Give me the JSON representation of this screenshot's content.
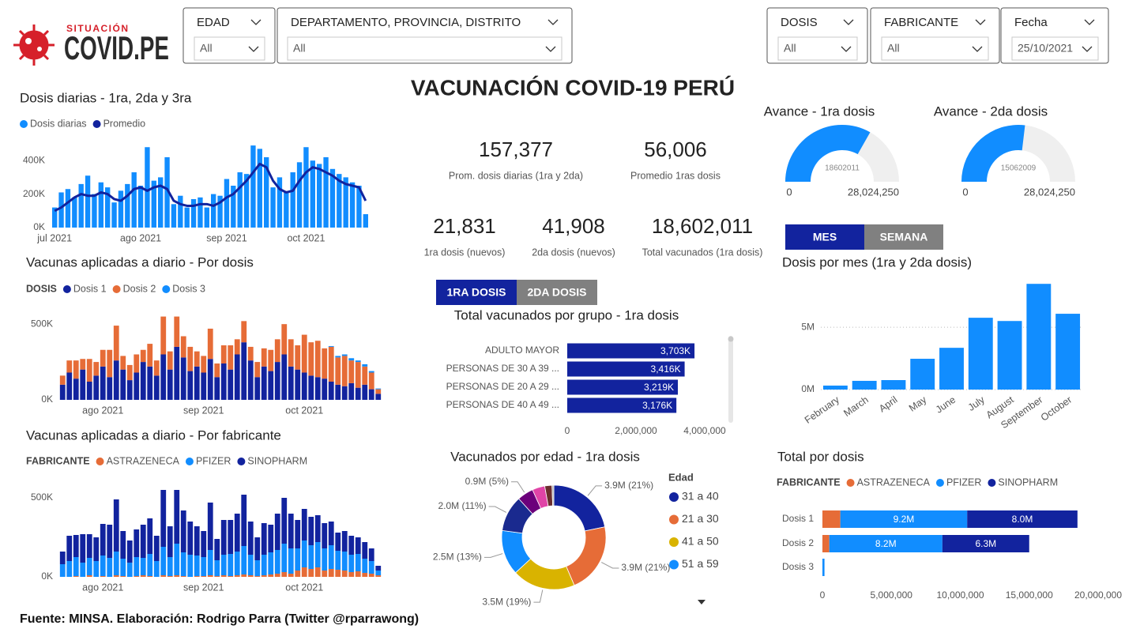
{
  "header": {
    "logo_small": "SITUACIÓN",
    "logo": "COVID.PE",
    "title": "VACUNACIÓN COVID-19 PERÚ"
  },
  "filters": [
    {
      "label": "EDAD",
      "value": "All"
    },
    {
      "label": "DEPARTAMENTO, PROVINCIA, DISTRITO",
      "value": "All"
    },
    {
      "label": "DOSIS",
      "value": "All"
    },
    {
      "label": "FABRICANTE",
      "value": "All"
    },
    {
      "label": "Fecha",
      "value": "25/10/2021"
    }
  ],
  "kpis": [
    {
      "value": "157,377",
      "label": "Prom. dosis diarias (1ra y 2da)"
    },
    {
      "value": "56,006",
      "label": "Promedio 1ras dosis"
    },
    {
      "value": "21,831",
      "label": "1ra dosis (nuevos)"
    },
    {
      "value": "41,908",
      "label": "2da dosis (nuevos)"
    },
    {
      "value": "18,602,011",
      "label": "Total vacunados (1ra dosis)"
    }
  ],
  "toggles": {
    "dose": [
      "1RA DOSIS",
      "2DA DOSIS"
    ],
    "period": [
      "MES",
      "SEMANA"
    ]
  },
  "footer": "Fuente: MINSA. Elaboración: Rodrigo Parra (Twitter @rparrawong)",
  "chart_data": [
    {
      "type": "combo",
      "title": "Dosis diarias - 1ra, 2da y 3ra",
      "categories": [
        "jul 2021",
        null,
        null,
        null,
        null,
        null,
        null,
        null,
        null,
        null,
        null,
        null,
        null,
        "ago 2021",
        null,
        null,
        null,
        null,
        null,
        null,
        null,
        null,
        null,
        null,
        null,
        null,
        "sep 2021",
        null,
        null,
        null,
        null,
        null,
        null,
        null,
        null,
        null,
        null,
        null,
        "oct 2021",
        null,
        null,
        null,
        null,
        null,
        null,
        null,
        null,
        null
      ],
      "series": [
        {
          "name": "Dosis diarias",
          "color": "#118dff",
          "mark": "bar",
          "values": [
            120000,
            210000,
            230000,
            180000,
            260000,
            310000,
            200000,
            270000,
            240000,
            150000,
            220000,
            260000,
            330000,
            250000,
            480000,
            280000,
            300000,
            420000,
            140000,
            190000,
            120000,
            170000,
            180000,
            120000,
            200000,
            190000,
            290000,
            250000,
            330000,
            320000,
            490000,
            470000,
            420000,
            240000,
            300000,
            210000,
            330000,
            390000,
            480000,
            400000,
            380000,
            420000,
            350000,
            320000,
            300000,
            270000,
            250000,
            80000
          ]
        },
        {
          "name": "Promedio",
          "color": "#12239e",
          "mark": "line",
          "values": [
            100000,
            120000,
            150000,
            180000,
            200000,
            190000,
            190000,
            210000,
            200000,
            170000,
            160000,
            190000,
            230000,
            240000,
            220000,
            240000,
            250000,
            230000,
            160000,
            140000,
            130000,
            130000,
            140000,
            140000,
            130000,
            150000,
            180000,
            200000,
            240000,
            280000,
            330000,
            380000,
            360000,
            280000,
            230000,
            210000,
            220000,
            280000,
            330000,
            360000,
            350000,
            330000,
            310000,
            280000,
            260000,
            250000,
            240000,
            160000
          ]
        }
      ],
      "ylim": [
        0,
        500000
      ],
      "yticks": [
        {
          "value": 0,
          "label": "0K"
        },
        {
          "value": 200000,
          "label": "200K"
        },
        {
          "value": 400000,
          "label": "400K"
        }
      ],
      "grid": false
    },
    {
      "type": "stacked_bar",
      "title": "Vacunas aplicadas a diario - Por dosis",
      "legend_title": "DOSIS",
      "categories": [
        null,
        null,
        null,
        null,
        null,
        null,
        "ago 2021",
        null,
        null,
        null,
        null,
        null,
        null,
        null,
        null,
        null,
        null,
        null,
        null,
        null,
        null,
        "sep 2021",
        null,
        null,
        null,
        null,
        null,
        null,
        null,
        null,
        null,
        null,
        null,
        null,
        null,
        null,
        "oct 2021",
        null,
        null,
        null,
        null,
        null,
        null,
        null,
        null,
        null,
        null,
        null
      ],
      "series": [
        {
          "name": "Dosis 1",
          "color": "#12239e",
          "values": [
            100000,
            180000,
            140000,
            200000,
            120000,
            160000,
            220000,
            150000,
            260000,
            200000,
            130000,
            180000,
            250000,
            220000,
            160000,
            300000,
            200000,
            350000,
            280000,
            190000,
            220000,
            180000,
            270000,
            150000,
            240000,
            200000,
            300000,
            380000,
            260000,
            150000,
            220000,
            190000,
            250000,
            300000,
            220000,
            200000,
            180000,
            160000,
            150000,
            140000,
            120000,
            100000,
            90000,
            110000,
            80000,
            100000,
            70000,
            40000
          ]
        },
        {
          "name": "Dosis 2",
          "color": "#e66c37",
          "values": [
            60000,
            80000,
            120000,
            70000,
            150000,
            90000,
            110000,
            180000,
            230000,
            90000,
            100000,
            120000,
            80000,
            150000,
            100000,
            250000,
            120000,
            200000,
            140000,
            160000,
            100000,
            110000,
            200000,
            90000,
            120000,
            160000,
            100000,
            140000,
            90000,
            100000,
            120000,
            140000,
            150000,
            200000,
            180000,
            160000,
            250000,
            220000,
            240000,
            200000,
            230000,
            180000,
            200000,
            150000,
            170000,
            120000,
            110000,
            30000
          ]
        },
        {
          "name": "Dosis 3",
          "color": "#118dff",
          "values": [
            0,
            0,
            0,
            0,
            0,
            0,
            0,
            0,
            0,
            0,
            0,
            0,
            0,
            0,
            0,
            0,
            0,
            0,
            0,
            0,
            0,
            0,
            0,
            0,
            0,
            0,
            0,
            0,
            0,
            0,
            0,
            0,
            0,
            0,
            0,
            0,
            0,
            0,
            0,
            0,
            5000,
            10000,
            10000,
            15000,
            10000,
            15000,
            10000,
            5000
          ]
        }
      ],
      "ylim": [
        0,
        600000
      ],
      "yticks": [
        {
          "value": 0,
          "label": "0K"
        },
        {
          "value": 500000,
          "label": "500K"
        }
      ],
      "grid": false
    },
    {
      "type": "stacked_bar",
      "title": "Vacunas aplicadas a diario - Por fabricante",
      "legend_title": "FABRICANTE",
      "categories": [
        null,
        null,
        null,
        null,
        null,
        null,
        "ago 2021",
        null,
        null,
        null,
        null,
        null,
        null,
        null,
        null,
        null,
        null,
        null,
        null,
        null,
        null,
        "sep 2021",
        null,
        null,
        null,
        null,
        null,
        null,
        null,
        null,
        null,
        null,
        null,
        null,
        null,
        null,
        "oct 2021",
        null,
        null,
        null,
        null,
        null,
        null,
        null,
        null,
        null,
        null,
        null
      ],
      "series": [
        {
          "name": "ASTRAZENECA",
          "color": "#e66c37",
          "values": [
            0,
            0,
            5000,
            0,
            10000,
            0,
            5000,
            0,
            10000,
            5000,
            0,
            5000,
            10000,
            5000,
            0,
            10000,
            5000,
            10000,
            5000,
            0,
            5000,
            5000,
            10000,
            5000,
            10000,
            5000,
            10000,
            15000,
            10000,
            5000,
            10000,
            15000,
            20000,
            30000,
            20000,
            40000,
            60000,
            50000,
            60000,
            40000,
            50000,
            45000,
            40000,
            30000,
            35000,
            25000,
            20000,
            10000
          ]
        },
        {
          "name": "PFIZER",
          "color": "#118dff",
          "values": [
            80000,
            100000,
            120000,
            90000,
            110000,
            100000,
            130000,
            120000,
            150000,
            110000,
            90000,
            120000,
            110000,
            140000,
            100000,
            180000,
            120000,
            200000,
            150000,
            140000,
            130000,
            120000,
            160000,
            100000,
            130000,
            140000,
            150000,
            180000,
            130000,
            100000,
            130000,
            140000,
            150000,
            180000,
            160000,
            140000,
            170000,
            150000,
            160000,
            140000,
            150000,
            120000,
            120000,
            110000,
            110000,
            90000,
            80000,
            30000
          ]
        },
        {
          "name": "SINOPHARM",
          "color": "#12239e",
          "values": [
            80000,
            160000,
            140000,
            180000,
            150000,
            150000,
            200000,
            210000,
            330000,
            175000,
            140000,
            175000,
            210000,
            225000,
            160000,
            360000,
            195000,
            340000,
            265000,
            210000,
            185000,
            165000,
            300000,
            135000,
            220000,
            215000,
            240000,
            325000,
            210000,
            145000,
            200000,
            175000,
            230000,
            290000,
            220000,
            180000,
            200000,
            180000,
            170000,
            160000,
            150000,
            115000,
            130000,
            120000,
            105000,
            105000,
            80000,
            30000
          ]
        }
      ],
      "ylim": [
        0,
        600000
      ],
      "yticks": [
        {
          "value": 0,
          "label": "0K"
        },
        {
          "value": 500000,
          "label": "500K"
        }
      ],
      "grid": false
    },
    {
      "type": "gauge",
      "title": "Avance - 1ra dosis",
      "value": 18602011,
      "color": "#118dff",
      "ylim": [
        0,
        28024250
      ],
      "yticks": [
        0,
        {
          "value": 28024250,
          "label": "28,024,250"
        }
      ]
    },
    {
      "type": "gauge",
      "title": "Avance - 2da dosis",
      "value": 15062009,
      "color": "#118dff",
      "ylim": [
        0,
        28024250
      ],
      "yticks": [
        0,
        {
          "value": 28024250,
          "label": "28,024,250"
        }
      ]
    },
    {
      "type": "bar",
      "title": "Dosis por mes (1ra y 2da dosis)",
      "categories": [
        "February",
        "March",
        "April",
        "May",
        "June",
        "July",
        "August",
        "September",
        "October"
      ],
      "values": [
        320000,
        700000,
        760000,
        2470000,
        3350000,
        5760000,
        5500000,
        8480000,
        6080000
      ],
      "color": "#118dff",
      "ylim": [
        0,
        9000000
      ],
      "yticks": [
        {
          "value": 0,
          "label": "0M"
        },
        {
          "value": 5000000,
          "label": "5M"
        }
      ],
      "grid": true
    },
    {
      "type": "hbar",
      "title": "Total vacunados por grupo - 1ra dosis",
      "categories": [
        "ADULTO MAYOR",
        "PERSONAS DE 30 A 39 ...",
        "PERSONAS DE 20 A 29 ...",
        "PERSONAS DE 40 A 49 ..."
      ],
      "values": [
        3703000,
        3416000,
        3219000,
        3176000
      ],
      "value_labels": [
        "3,703K",
        "3,416K",
        "3,219K",
        "3,176K"
      ],
      "color": "#12239e",
      "xlim": [
        0,
        4000000
      ],
      "xticks": [
        0,
        {
          "value": 2000000,
          "label": "2,000,000"
        },
        {
          "value": 4000000,
          "label": "4,000,000"
        }
      ]
    },
    {
      "type": "donut",
      "title": "Vacunados por edad - 1ra dosis",
      "legend_title": "Edad",
      "categories": [
        "31 a 40",
        "21 a 30",
        "41 a 50",
        "51 a 59",
        null,
        null,
        null,
        null,
        null
      ],
      "values": [
        3.9,
        3.9,
        3.5,
        2.5,
        2.0,
        0.9,
        0.7,
        0.4,
        0.1
      ],
      "value_labels": [
        "3.9M (21%)",
        "3.9M (21%)",
        "3.5M (19%)",
        "2.5M (13%)",
        "2.0M (11%)",
        "0.9M (5%)",
        null,
        null,
        null
      ],
      "colors": [
        "#12239e",
        "#e66c37",
        "#d9b300",
        "#118dff",
        "#1a2a8f",
        "#6b007b",
        "#e044a7",
        "#6b2e2e",
        "#b0b0b0"
      ]
    },
    {
      "type": "stacked_hbar",
      "title": "Total por dosis",
      "legend_title": "FABRICANTE",
      "categories": [
        "Dosis 1",
        "Dosis 2",
        "Dosis 3"
      ],
      "series": [
        {
          "name": "ASTRAZENECA",
          "color": "#e66c37",
          "values": [
            1300000,
            500000,
            0
          ]
        },
        {
          "name": "PFIZER",
          "color": "#118dff",
          "values": [
            9200000,
            8200000,
            150000
          ],
          "value_labels": [
            "9.2M",
            "8.2M",
            null
          ]
        },
        {
          "name": "SINOPHARM",
          "color": "#12239e",
          "values": [
            8000000,
            6300000,
            0
          ],
          "value_labels": [
            "8.0M",
            "6.3M",
            null
          ]
        }
      ],
      "xlim": [
        0,
        20000000
      ],
      "xticks": [
        0,
        {
          "value": 5000000,
          "label": "5,000,000"
        },
        {
          "value": 10000000,
          "label": "10,000,000"
        },
        {
          "value": 15000000,
          "label": "15,000,000"
        },
        {
          "value": 20000000,
          "label": "20,000,000"
        }
      ]
    }
  ]
}
